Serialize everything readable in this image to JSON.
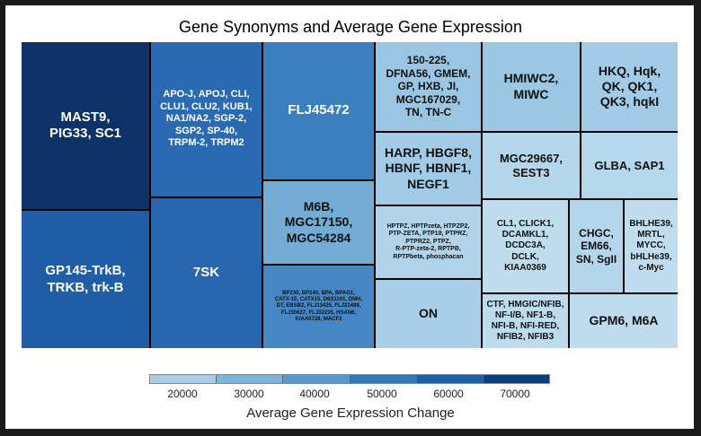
{
  "chart_data": {
    "type": "treemap",
    "title": "Gene Synonyms and Average Gene Expression",
    "legend": {
      "title": "Average Gene Expression Change",
      "ticks": [
        "20000",
        "30000",
        "40000",
        "50000",
        "60000",
        "70000"
      ],
      "colors": [
        "#a9cde4",
        "#7fb3d8",
        "#5a98c9",
        "#3478b5",
        "#1f5fa0",
        "#0f3f7a"
      ]
    },
    "tiles": [
      {
        "label": "MAST9,\nPIG33, SC1",
        "value": 73000,
        "color": "#0c3268"
      },
      {
        "label": "GP145-TrkB,\nTRKB, trk-B",
        "value": 52000,
        "color": "#1f5ea6"
      },
      {
        "label": "APO-J, APOJ, CLI,\nCLU1, CLU2, KUB1,\nNA1/NA2, SGP-2,\nSGP2, SP-40,\nTRPM-2, TRPM2",
        "value": 52000,
        "color": "#2a6ab2"
      },
      {
        "label": "7SK",
        "value": 52000,
        "color": "#2866af"
      },
      {
        "label": "FLJ45472",
        "value": 45000,
        "color": "#3b7fbf"
      },
      {
        "label": "M6B,\nMGC17150,\nMGC54284",
        "value": 35000,
        "color": "#73add6"
      },
      {
        "label": "BP230, BP240, BPA, BPAG1,\nCATX-15, CATX15, D6S1101, DMH,\nDT, EBSB2, FLJ13425, FLJ21489,\nFLJ30627, FLJ32235, HSAN6,\nKIAA0728, MACF2",
        "value": 48000,
        "color": "#4587c4"
      },
      {
        "label": "150-225,\nDFNA56, GMEM,\nGP, HXB, JI,\nMGC167029,\nTN, TN-C",
        "value": 25000,
        "color": "#9ac6e3"
      },
      {
        "label": "HMIWC2,\nMIWC",
        "value": 25000,
        "color": "#9bc7e3"
      },
      {
        "label": "HKQ, Hqk,\nQK, QK1,\nQK3, hqkI",
        "value": 24000,
        "color": "#a1cbe6"
      },
      {
        "label": "HARP, HBGF8,\nHBNF, HBNF1,\nNEGF1",
        "value": 24000,
        "color": "#a1cbe6"
      },
      {
        "label": "MGC29667,\nSEST3",
        "value": 21000,
        "color": "#b5d7ec"
      },
      {
        "label": "GLBA, SAP1",
        "value": 21000,
        "color": "#b6d8ec"
      },
      {
        "label": "HPTPZ, HPTPzeta, HTPZP2,\nPTP-ZETA, PTP18, PTPRZ,\nPTPRZ2, PTPZ,\nR-PTP-zeta-2, RPTPB,\nRPTPbeta, phosphacan",
        "value": 21000,
        "color": "#b1d4ea"
      },
      {
        "label": "CL1, CLICK1,\nDCAMKL1,\nDCDC3A,\nDCLK,\nKIAA0369",
        "value": 20000,
        "color": "#bedded"
      },
      {
        "label": "CHGC,\nEM66,\nSN, SgII",
        "value": 21000,
        "color": "#b4d6eb"
      },
      {
        "label": "BHLHE39,\nMRTL,\nMYCC,\nbHLHe39,\nc-Myc",
        "value": 20000,
        "color": "#bfddee"
      },
      {
        "label": "ON",
        "value": 22000,
        "color": "#a8cfe7"
      },
      {
        "label": "CTF, HMGIC/NFIB,\nNF-I/B, NF1-B,\nNFI-B, NFI-RED,\nNFIB2, NFIB3",
        "value": 20000,
        "color": "#bcdbed"
      },
      {
        "label": "GPM6, M6A",
        "value": 20000,
        "color": "#bddced"
      }
    ]
  }
}
